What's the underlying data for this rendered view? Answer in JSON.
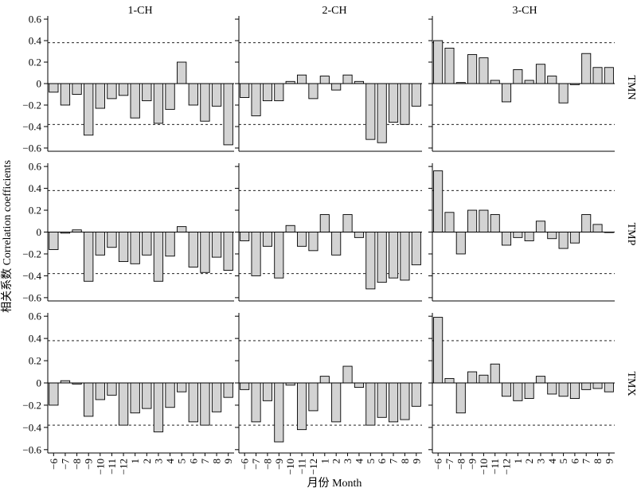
{
  "chart_data": {
    "type": "bar",
    "ylabel": "相关系数 Correlation coefficients",
    "xlabel": "月份 Month",
    "columns": [
      "1-CH",
      "2-CH",
      "3-CH"
    ],
    "rows": [
      "TMN",
      "TMP",
      "TMX"
    ],
    "categories": [
      "−6",
      "−7",
      "−8",
      "−9",
      "−10",
      "−11",
      "−12",
      "1",
      "2",
      "3",
      "4",
      "5",
      "6",
      "7",
      "8",
      "9"
    ],
    "yticks": [
      "0.6",
      "0.4",
      "0.2",
      "0",
      "−0.2",
      "−0.4",
      "−0.6"
    ],
    "ylim": [
      -0.63,
      0.63
    ],
    "significance_lines": [
      0.38,
      -0.38
    ],
    "bar_color": "#d3d3d3",
    "panels": [
      {
        "row": "TMN",
        "column": "1-CH",
        "values": [
          -0.08,
          -0.2,
          -0.1,
          -0.48,
          -0.23,
          -0.14,
          -0.11,
          -0.32,
          -0.16,
          -0.37,
          -0.24,
          0.2,
          -0.2,
          -0.35,
          -0.21,
          -0.57
        ]
      },
      {
        "row": "TMN",
        "column": "2-CH",
        "values": [
          -0.13,
          -0.3,
          -0.16,
          -0.16,
          0.02,
          0.08,
          -0.14,
          0.07,
          -0.06,
          0.08,
          0.02,
          -0.52,
          -0.55,
          -0.36,
          -0.38,
          -0.21
        ]
      },
      {
        "row": "TMN",
        "column": "3-CH",
        "values": [
          0.4,
          0.33,
          0.01,
          0.27,
          0.24,
          0.03,
          -0.17,
          0.13,
          0.03,
          0.18,
          0.07,
          -0.18,
          -0.01,
          0.28,
          0.15,
          0.15
        ]
      },
      {
        "row": "TMP",
        "column": "1-CH",
        "values": [
          -0.16,
          -0.01,
          0.02,
          -0.45,
          -0.21,
          -0.14,
          -0.27,
          -0.29,
          -0.21,
          -0.45,
          -0.22,
          0.05,
          -0.32,
          -0.37,
          -0.23,
          -0.35
        ]
      },
      {
        "row": "TMP",
        "column": "2-CH",
        "values": [
          -0.08,
          -0.4,
          -0.13,
          -0.42,
          0.06,
          -0.13,
          -0.17,
          0.16,
          -0.21,
          0.16,
          -0.05,
          -0.52,
          -0.46,
          -0.42,
          -0.44,
          -0.3
        ]
      },
      {
        "row": "TMP",
        "column": "3-CH",
        "values": [
          0.56,
          0.18,
          -0.2,
          0.2,
          0.2,
          0.16,
          -0.12,
          -0.05,
          -0.08,
          0.1,
          -0.06,
          -0.15,
          -0.1,
          0.16,
          0.07,
          0.0
        ]
      },
      {
        "row": "TMX",
        "column": "1-CH",
        "values": [
          -0.2,
          0.02,
          -0.01,
          -0.3,
          -0.15,
          -0.11,
          -0.38,
          -0.27,
          -0.23,
          -0.44,
          -0.22,
          -0.08,
          -0.35,
          -0.38,
          -0.26,
          -0.13
        ]
      },
      {
        "row": "TMX",
        "column": "2-CH",
        "values": [
          -0.06,
          -0.35,
          -0.16,
          -0.53,
          -0.02,
          -0.42,
          -0.25,
          0.06,
          -0.35,
          0.15,
          -0.04,
          -0.38,
          -0.31,
          -0.35,
          -0.33,
          -0.21
        ]
      },
      {
        "row": "TMX",
        "column": "3-CH",
        "values": [
          0.59,
          0.04,
          -0.27,
          0.1,
          0.07,
          0.17,
          -0.12,
          -0.16,
          -0.14,
          0.06,
          -0.1,
          -0.12,
          -0.14,
          -0.06,
          -0.05,
          -0.08
        ]
      }
    ]
  }
}
